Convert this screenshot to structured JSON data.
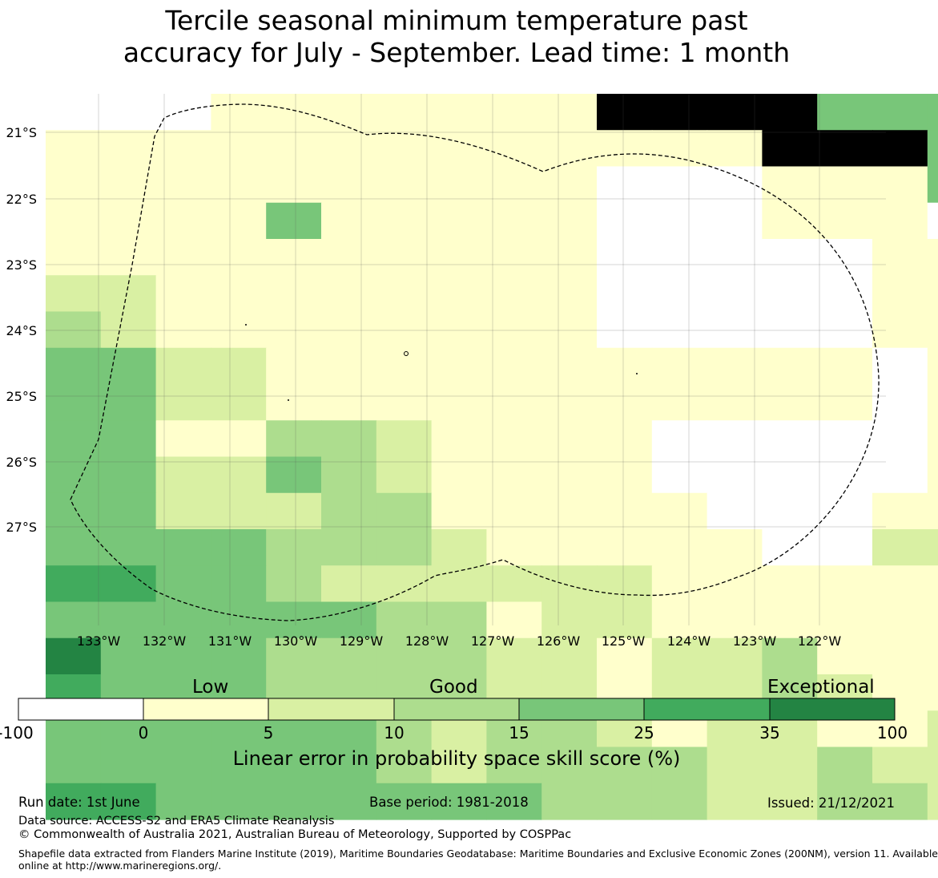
{
  "title": {
    "line1": "Tercile seasonal minimum temperature past",
    "line2": "accuracy for July - September. Lead time: 1 month"
  },
  "map": {
    "lat_labels": [
      "21°S",
      "22°S",
      "23°S",
      "24°S",
      "25°S",
      "26°S",
      "27°S"
    ],
    "lon_labels": [
      "133°W",
      "132°W",
      "131°W",
      "130°W",
      "129°W",
      "128°W",
      "127°W",
      "126°W",
      "125°W",
      "124°W",
      "123°W",
      "122°W"
    ],
    "grid": [
      "00011111117777444411",
      "11111111111117774444",
      "11111111110001114441",
      "11114111110001110111",
      "11111111110000011111",
      "22111111110000011111",
      "32111111110000011111",
      "44221111111111101000",
      "44221111111111101000",
      "44113321111000001111",
      "44224321111000001111",
      "44222331111100011111",
      "44443332111110022221",
      "55443222222111111222",
      "44444433122111111122",
      "64443333221223111112",
      "54443333221223211112",
      "44444432332122112221",
      "44444432333322322221",
      "55444444433322332212",
      "55444444333333332212"
    ],
    "legend_colors": [
      "#ffffff",
      "#ffffcc",
      "#d9f0a3",
      "#addd8e",
      "#78c679",
      "#41ab5d",
      "#238443"
    ]
  },
  "colorbar": {
    "categories": [
      "Low",
      "Good",
      "Exceptional"
    ],
    "ticks": [
      "-100",
      "0",
      "5",
      "10",
      "15",
      "25",
      "35",
      "100"
    ],
    "label": "Linear error in probability space skill score (%)"
  },
  "footer": {
    "run_date": "Run date: 1st June",
    "base_period": "Base period: 1981-2018",
    "issued": "Issued: 21/12/2021",
    "data_source": "Data source: ACCESS-S2 and ERA5 Climate Reanalysis",
    "copyright": "© Commonwealth of Australia 2021, Australian Bureau of Meteorology, Supported by COSPPac",
    "shapefile_1": "Shapefile data extracted from Flanders Marine Institute (2019), Maritime Boundaries Geodatabase: Maritime Boundaries and Exclusive Economic Zones (200NM), version 11. Available",
    "shapefile_2": "online at http://www.marineregions.org/."
  }
}
